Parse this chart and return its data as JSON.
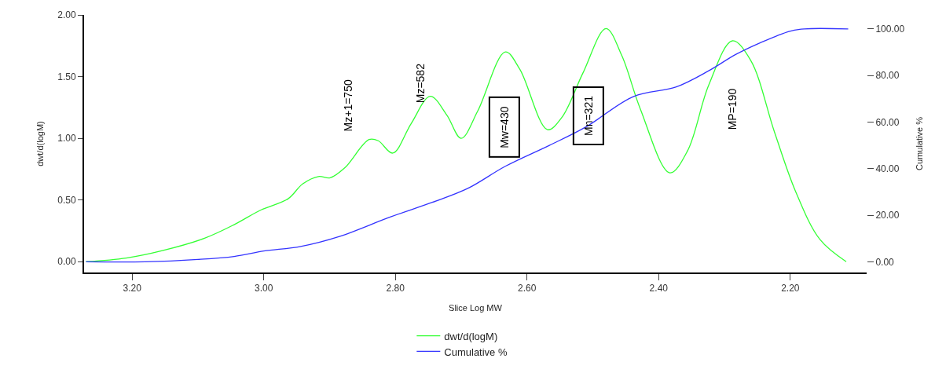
{
  "chart_data": {
    "type": "line",
    "xlabel": "Slice Log MW",
    "ylabel": "dwt/d(logM)",
    "y2label": "Cumulative %",
    "xlim": [
      3.273,
      2.084
    ],
    "ylim": [
      -0.0875,
      2.0
    ],
    "y2lim": [
      -4.6,
      106
    ],
    "xticks": [
      {
        "value": 3.2,
        "label": "3.20"
      },
      {
        "value": 3.0,
        "label": "3.00"
      },
      {
        "value": 2.8,
        "label": "2.80"
      },
      {
        "value": 2.6,
        "label": "2.60"
      },
      {
        "value": 2.4,
        "label": "2.40"
      },
      {
        "value": 2.2,
        "label": "2.20"
      }
    ],
    "yticks": [
      {
        "value": 0,
        "label": "0.00"
      },
      {
        "value": 0.5,
        "label": "0.50"
      },
      {
        "value": 1.0,
        "label": "1.00"
      },
      {
        "value": 1.5,
        "label": "1.50"
      },
      {
        "value": 2.0,
        "label": "2.00"
      }
    ],
    "y2ticks": [
      {
        "value": 0,
        "label": "0.00"
      },
      {
        "value": 20,
        "label": "20.00"
      },
      {
        "value": 40,
        "label": "40.00"
      },
      {
        "value": 60,
        "label": "60.00"
      },
      {
        "value": 80,
        "label": "80.00"
      },
      {
        "value": 100,
        "label": "100.00"
      }
    ],
    "legend": "bottom",
    "marker": "none",
    "line_style": "solid",
    "series": [
      {
        "name": "dwt/d(logM)",
        "color": "#33ff33",
        "x": [
          3.27,
          3.209,
          3.154,
          3.09,
          3.045,
          3.004,
          2.963,
          2.941,
          2.917,
          2.899,
          2.877,
          2.84,
          2.826,
          2.804,
          2.776,
          2.747,
          2.722,
          2.7,
          2.675,
          2.633,
          2.611,
          2.569,
          2.547,
          2.515,
          2.48,
          2.456,
          2.428,
          2.383,
          2.356,
          2.324,
          2.288,
          2.26,
          2.224,
          2.192,
          2.155,
          2.115
        ],
        "values": [
          0,
          0.03,
          0.09,
          0.19,
          0.3,
          0.42,
          0.51,
          0.63,
          0.69,
          0.68,
          0.76,
          0.99,
          0.98,
          0.88,
          1.12,
          1.34,
          1.19,
          1.0,
          1.22,
          1.7,
          1.56,
          1.07,
          1.17,
          1.53,
          1.89,
          1.67,
          1.24,
          0.72,
          0.9,
          1.43,
          1.79,
          1.63,
          1.05,
          0.57,
          0.18,
          0.0
        ]
      },
      {
        "name": "Cumulative %",
        "color": "#3333ff",
        "axis": "y2",
        "x": [
          3.27,
          3.18,
          3.1,
          3.045,
          3.0,
          2.944,
          2.885,
          2.808,
          2.744,
          2.69,
          2.633,
          2.566,
          2.51,
          2.438,
          2.374,
          2.324,
          2.283,
          2.246,
          2.201,
          2.179,
          2.112
        ],
        "values": [
          0,
          0,
          1.0,
          2.3,
          4.6,
          6.6,
          10.9,
          19.2,
          25.5,
          31.5,
          41,
          50,
          58,
          71,
          75,
          82,
          89,
          94,
          99,
          100,
          100
        ]
      }
    ],
    "annotations": [
      "Mz+1=750",
      "Mz=582",
      "Mw=430",
      "Mn=321",
      "MP=190"
    ]
  }
}
